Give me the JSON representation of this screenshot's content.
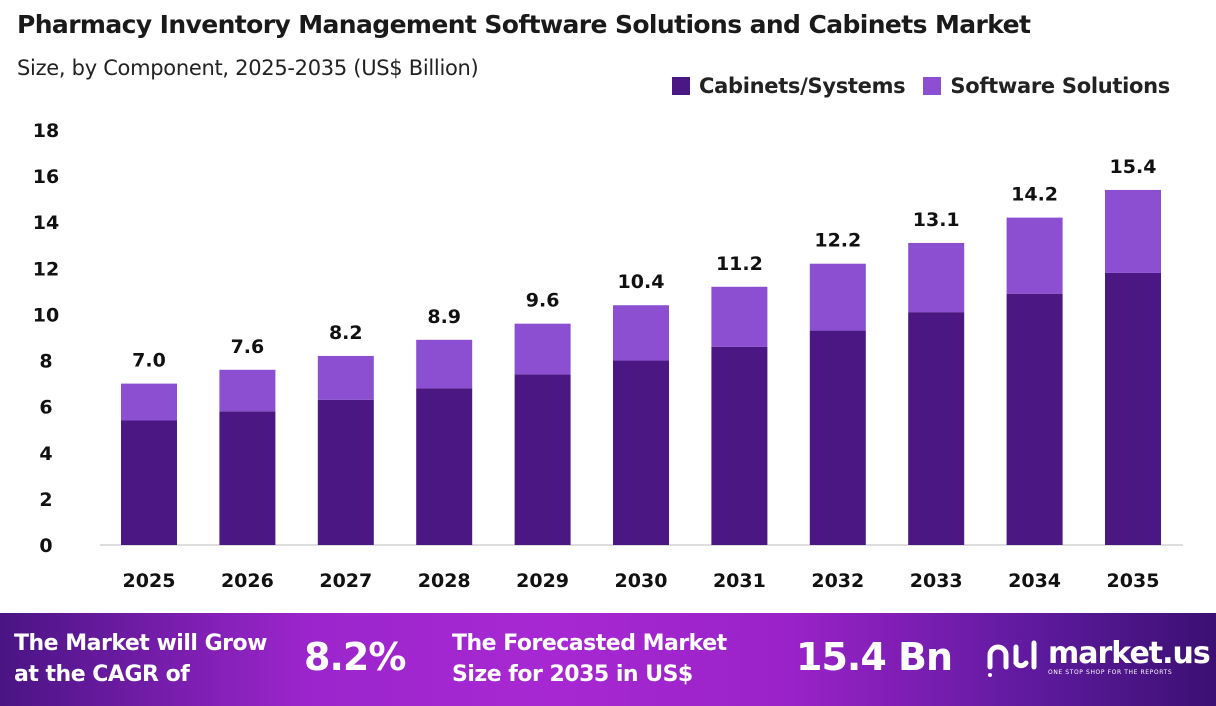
{
  "chart_data": {
    "type": "bar",
    "stacked": true,
    "title": "Pharmacy Inventory Management Software Solutions and Cabinets  Market",
    "subtitle": "Size, by Component, 2025-2035 (US$ Billion)",
    "categories": [
      "2025",
      "2026",
      "2027",
      "2028",
      "2029",
      "2030",
      "2031",
      "2032",
      "2033",
      "2034",
      "2035"
    ],
    "series": [
      {
        "name": "Cabinets/Systems",
        "color": "#4b1782",
        "values": [
          5.4,
          5.8,
          6.3,
          6.8,
          7.4,
          8.0,
          8.6,
          9.3,
          10.1,
          10.9,
          11.8
        ]
      },
      {
        "name": "Software Solutions",
        "color": "#8c4fd2",
        "values": [
          1.6,
          1.8,
          1.9,
          2.1,
          2.2,
          2.4,
          2.6,
          2.9,
          3.0,
          3.3,
          3.6
        ]
      }
    ],
    "totals_labels": [
      "7.0",
      "7.6",
      "8.2",
      "8.9",
      "9.6",
      "10.4",
      "11.2",
      "12.2",
      "13.1",
      "14.2",
      "15.4"
    ],
    "yticks": [
      "0",
      "2",
      "4",
      "6",
      "8",
      "10",
      "12",
      "14",
      "16",
      "18"
    ],
    "ylim": [
      0,
      18
    ],
    "xlabel": "",
    "ylabel": "",
    "grid": false,
    "legend_position": "top-right"
  },
  "footer": {
    "cagr_text": "The Market will Grow at the CAGR of",
    "cagr_line1": "The Market will Grow",
    "cagr_line2": "at the CAGR of",
    "cagr_value": "8.2%",
    "forecast_line1": "The Forecasted Market",
    "forecast_line2": "Size for 2035 in US$",
    "forecast_value": "15.4 Bn",
    "logo_name": "market.us",
    "logo_tagline": "ONE STOP SHOP FOR THE REPORTS"
  }
}
